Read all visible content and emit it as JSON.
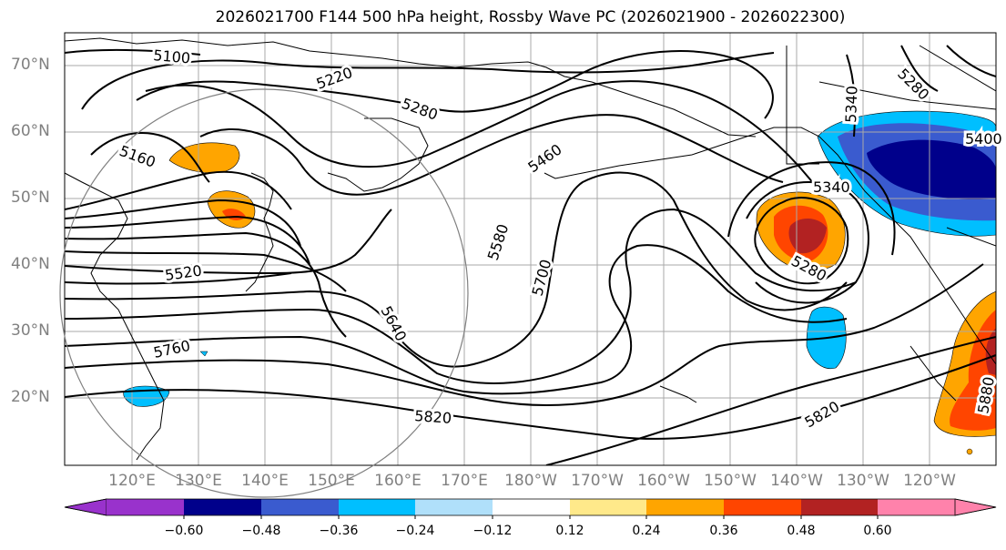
{
  "title": "2026021700 F144 500 hPa height, Rossby Wave PC (2026021900 - 2026022300)",
  "lat_labels": [
    "70°N",
    "60°N",
    "50°N",
    "40°N",
    "30°N",
    "20°N"
  ],
  "lon_labels": [
    "120°E",
    "130°E",
    "140°E",
    "150°E",
    "160°E",
    "170°E",
    "180°W",
    "170°W",
    "160°W",
    "150°W",
    "140°W",
    "130°W",
    "120°W"
  ],
  "contour_labels": [
    "5100",
    "5220",
    "5280",
    "5160",
    "5460",
    "5400",
    "5340",
    "5340",
    "5580",
    "5520",
    "5700",
    "5640",
    "5280",
    "5760",
    "5820",
    "5820",
    "5880",
    "5280"
  ],
  "colorbar": {
    "ticks": [
      "−0.60",
      "−0.48",
      "−0.36",
      "−0.24",
      "−0.12",
      "0.12",
      "0.24",
      "0.36",
      "0.48",
      "0.60"
    ],
    "colors": [
      "#9932cc",
      "#00008b",
      "#3a5bcf",
      "#00bfff",
      "#b0e0fa",
      "#ffffff",
      "#ffe98a",
      "#ffa500",
      "#ff4500",
      "#b22222",
      "#ff82ab"
    ]
  },
  "colors": {
    "positive_mid": "#ffa500",
    "positive_high": "#ff4500",
    "positive_max": "#b22222",
    "negative_mid": "#00bfff",
    "negative_high": "#3a5bcf",
    "negative_max": "#00008b"
  }
}
